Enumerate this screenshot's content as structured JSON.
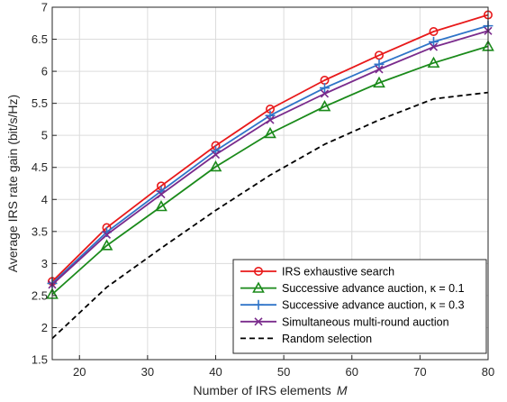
{
  "chart_data": {
    "type": "line",
    "xlabel": "Number of IRS elements",
    "xlabel_var": "M",
    "ylabel": "Average IRS rate gain (bit/s/Hz)",
    "xlim": [
      16,
      80
    ],
    "ylim": [
      1.5,
      7
    ],
    "xticks": [
      "20",
      "30",
      "40",
      "50",
      "60",
      "70",
      "80"
    ],
    "yticks": [
      "1.5",
      "2",
      "2.5",
      "3",
      "3.5",
      "4",
      "4.5",
      "5",
      "5.5",
      "6",
      "6.5",
      "7"
    ],
    "grid": true,
    "legend_position": "bottom-right",
    "x": [
      16,
      24,
      32,
      40,
      48,
      56,
      64,
      72,
      80
    ],
    "series": [
      {
        "name": "IRS exhaustive search",
        "name_suffix": "",
        "color": "#e8191a",
        "marker": "circle",
        "dash": "solid",
        "values": [
          2.72,
          3.56,
          4.21,
          4.84,
          5.41,
          5.86,
          6.25,
          6.62,
          6.88
        ]
      },
      {
        "name": "Successive advance auction, ",
        "name_suffix": "κ = 0.1",
        "color": "#1a8a1a",
        "marker": "triangle",
        "dash": "solid",
        "values": [
          2.52,
          3.28,
          3.89,
          4.51,
          5.03,
          5.45,
          5.82,
          6.13,
          6.39
        ]
      },
      {
        "name": "Successive advance auction, ",
        "name_suffix": "κ = 0.3",
        "color": "#2f74c8",
        "marker": "plus",
        "dash": "solid",
        "values": [
          2.69,
          3.49,
          4.13,
          4.76,
          5.31,
          5.74,
          6.11,
          6.46,
          6.71
        ]
      },
      {
        "name": "Simultaneous multi-round auction",
        "name_suffix": "",
        "color": "#7a2b8c",
        "marker": "x",
        "dash": "solid",
        "values": [
          2.67,
          3.45,
          4.08,
          4.7,
          5.24,
          5.65,
          6.03,
          6.38,
          6.63
        ]
      },
      {
        "name": "Random selection",
        "name_suffix": "",
        "color": "#000000",
        "marker": "none",
        "dash": "dashed",
        "values": [
          1.83,
          2.63,
          3.24,
          3.83,
          4.38,
          4.86,
          5.24,
          5.57,
          5.67
        ]
      }
    ]
  }
}
